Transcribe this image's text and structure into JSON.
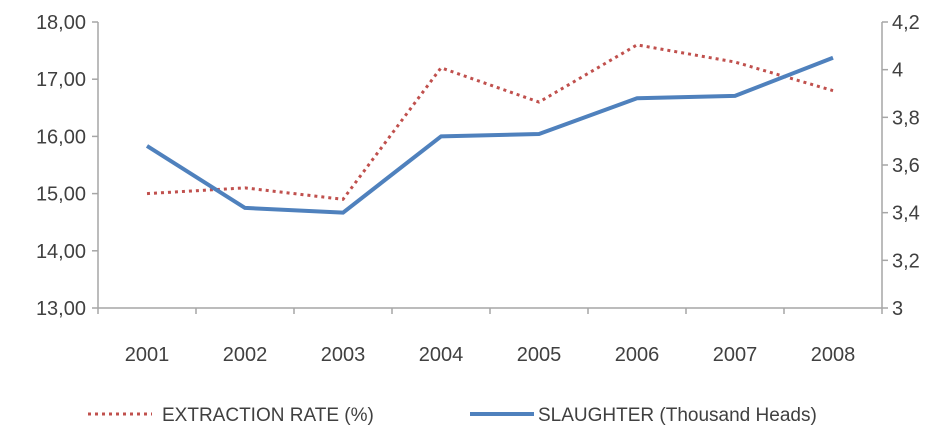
{
  "chart_data": {
    "type": "line",
    "title": "",
    "categories": [
      "2001",
      "2002",
      "2003",
      "2004",
      "2005",
      "2006",
      "2007",
      "2008"
    ],
    "y_left": {
      "ylim": [
        13,
        18
      ],
      "ticks": [
        13,
        14,
        15,
        16,
        17,
        18
      ],
      "tick_labels": [
        "13,00",
        "14,00",
        "15,00",
        "16,00",
        "17,00",
        "18,00"
      ]
    },
    "y_right": {
      "ylim": [
        3,
        4.2
      ],
      "ticks": [
        3,
        3.2,
        3.4,
        3.6,
        3.8,
        4,
        4.2
      ],
      "tick_labels": [
        "3",
        "3,2",
        "3,4",
        "3,6",
        "3,8",
        "4",
        "4,2"
      ]
    },
    "series": [
      {
        "name": "EXTRACTION RATE (%)",
        "axis": "left",
        "style": "dotted",
        "color": "#C0504D",
        "values": [
          15.0,
          15.1,
          14.9,
          17.2,
          16.6,
          17.6,
          17.3,
          16.8
        ]
      },
      {
        "name": "SLAUGHTER (Thousand Heads)",
        "axis": "right",
        "style": "solid",
        "color": "#4F81BD",
        "values": [
          3.68,
          3.42,
          3.4,
          3.72,
          3.73,
          3.88,
          3.89,
          4.05
        ]
      }
    ],
    "grid": false,
    "legend_position": "bottom"
  }
}
